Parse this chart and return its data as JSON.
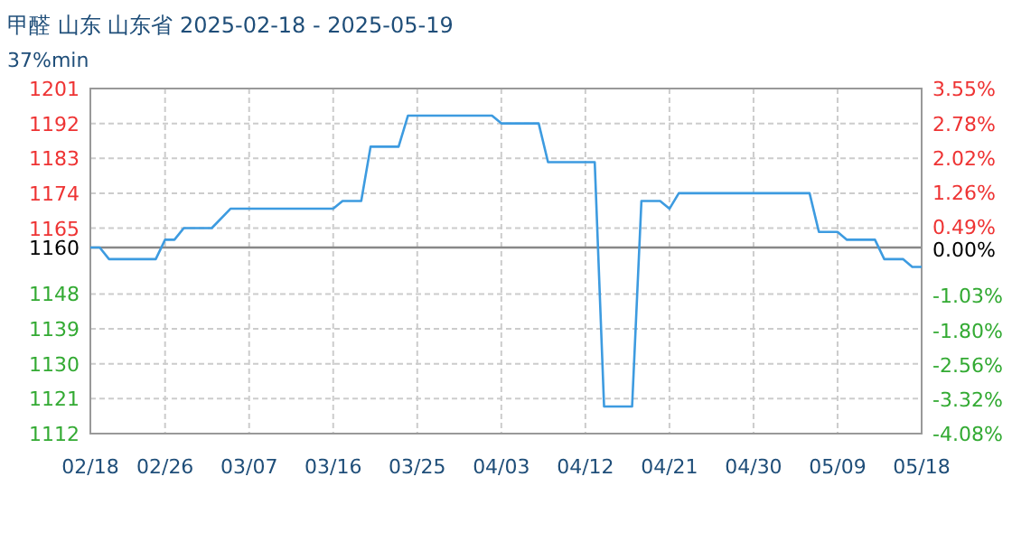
{
  "chart_data": {
    "type": "line",
    "title": "甲醛 山东 山东省 2025-02-18 - 2025-05-19",
    "subtitle": "37%min",
    "x": [
      "2025-02-18",
      "2025-02-19",
      "2025-02-20",
      "2025-02-25",
      "2025-02-26",
      "2025-02-27",
      "2025-02-28",
      "2025-03-03",
      "2025-03-05",
      "2025-03-16",
      "2025-03-17",
      "2025-03-19",
      "2025-03-20",
      "2025-03-23",
      "2025-03-24",
      "2025-04-02",
      "2025-04-03",
      "2025-04-07",
      "2025-04-08",
      "2025-04-13",
      "2025-04-14",
      "2025-04-17",
      "2025-04-18",
      "2025-04-20",
      "2025-04-21",
      "2025-04-22",
      "2025-05-06",
      "2025-05-07",
      "2025-05-09",
      "2025-05-10",
      "2025-05-13",
      "2025-05-14",
      "2025-05-16",
      "2025-05-17",
      "2025-05-18"
    ],
    "series": [
      {
        "color": "#3d9be0",
        "values": [
          1160,
          1160,
          1157,
          1157,
          1162,
          1162,
          1165,
          1165,
          1170,
          1170,
          1172,
          1172,
          1186,
          1186,
          1194,
          1194,
          1192,
          1192,
          1182,
          1182,
          1119,
          1119,
          1172,
          1172,
          1170,
          1174,
          1174,
          1164,
          1164,
          1162,
          1162,
          1157,
          1157,
          1155,
          1155
        ]
      }
    ],
    "xlim": [
      "2025-02-18",
      "2025-05-18"
    ],
    "xticks": [
      {
        "value": "2025-02-18",
        "label": "02/18"
      },
      {
        "value": "2025-02-26",
        "label": "02/26"
      },
      {
        "value": "2025-03-07",
        "label": "03/07"
      },
      {
        "value": "2025-03-16",
        "label": "03/16"
      },
      {
        "value": "2025-03-25",
        "label": "03/25"
      },
      {
        "value": "2025-04-03",
        "label": "04/03"
      },
      {
        "value": "2025-04-12",
        "label": "04/12"
      },
      {
        "value": "2025-04-21",
        "label": "04/21"
      },
      {
        "value": "2025-04-30",
        "label": "04/30"
      },
      {
        "value": "2025-05-09",
        "label": "05/09"
      },
      {
        "value": "2025-05-18",
        "label": "05/18"
      }
    ],
    "ylim": [
      1112,
      1201
    ],
    "yticks": [
      1112,
      1121,
      1130,
      1139,
      1148,
      1160,
      1165,
      1174,
      1183,
      1192,
      1201
    ],
    "y2lim": [
      -4.08,
      3.55
    ],
    "y2ticks": [
      {
        "value": -4.08,
        "label": "-4.08%"
      },
      {
        "value": -3.32,
        "label": "-3.32%"
      },
      {
        "value": -2.56,
        "label": "-2.56%"
      },
      {
        "value": -1.8,
        "label": "-1.80%"
      },
      {
        "value": -1.03,
        "label": "-1.03%"
      },
      {
        "value": 0,
        "label": "0.00%"
      },
      {
        "value": 0.49,
        "label": "0.49%"
      },
      {
        "value": 1.26,
        "label": "1.26%"
      },
      {
        "value": 2.02,
        "label": "2.02%"
      },
      {
        "value": 2.78,
        "label": "2.78%"
      },
      {
        "value": 3.55,
        "label": "3.55%"
      }
    ],
    "ref_lines": [
      {
        "axis": "y",
        "value": 1160,
        "color": "#888888"
      }
    ],
    "grid": true,
    "marker": "none",
    "line_style": "solid"
  }
}
